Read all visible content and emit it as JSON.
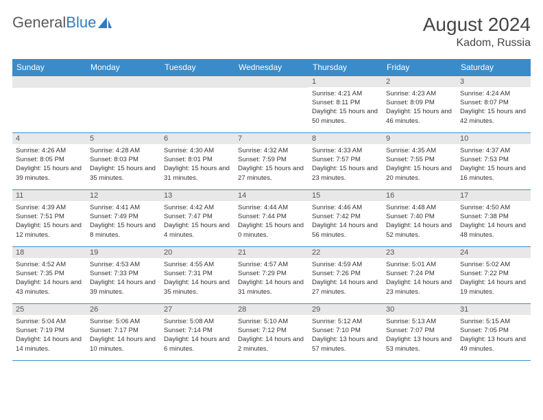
{
  "brand": {
    "part1": "General",
    "part2": "Blue"
  },
  "header": {
    "title": "August 2024",
    "location": "Kadom, Russia"
  },
  "colors": {
    "header_bg": "#3a8bc9",
    "daynum_bg": "#e8e8e8",
    "border": "#3a8bc9",
    "text": "#333333",
    "title": "#444444"
  },
  "dow": [
    "Sunday",
    "Monday",
    "Tuesday",
    "Wednesday",
    "Thursday",
    "Friday",
    "Saturday"
  ],
  "weeks": [
    [
      null,
      null,
      null,
      null,
      {
        "n": "1",
        "sr": "4:21 AM",
        "ss": "8:11 PM",
        "dl": "15 hours and 50 minutes."
      },
      {
        "n": "2",
        "sr": "4:23 AM",
        "ss": "8:09 PM",
        "dl": "15 hours and 46 minutes."
      },
      {
        "n": "3",
        "sr": "4:24 AM",
        "ss": "8:07 PM",
        "dl": "15 hours and 42 minutes."
      }
    ],
    [
      {
        "n": "4",
        "sr": "4:26 AM",
        "ss": "8:05 PM",
        "dl": "15 hours and 39 minutes."
      },
      {
        "n": "5",
        "sr": "4:28 AM",
        "ss": "8:03 PM",
        "dl": "15 hours and 35 minutes."
      },
      {
        "n": "6",
        "sr": "4:30 AM",
        "ss": "8:01 PM",
        "dl": "15 hours and 31 minutes."
      },
      {
        "n": "7",
        "sr": "4:32 AM",
        "ss": "7:59 PM",
        "dl": "15 hours and 27 minutes."
      },
      {
        "n": "8",
        "sr": "4:33 AM",
        "ss": "7:57 PM",
        "dl": "15 hours and 23 minutes."
      },
      {
        "n": "9",
        "sr": "4:35 AM",
        "ss": "7:55 PM",
        "dl": "15 hours and 20 minutes."
      },
      {
        "n": "10",
        "sr": "4:37 AM",
        "ss": "7:53 PM",
        "dl": "15 hours and 16 minutes."
      }
    ],
    [
      {
        "n": "11",
        "sr": "4:39 AM",
        "ss": "7:51 PM",
        "dl": "15 hours and 12 minutes."
      },
      {
        "n": "12",
        "sr": "4:41 AM",
        "ss": "7:49 PM",
        "dl": "15 hours and 8 minutes."
      },
      {
        "n": "13",
        "sr": "4:42 AM",
        "ss": "7:47 PM",
        "dl": "15 hours and 4 minutes."
      },
      {
        "n": "14",
        "sr": "4:44 AM",
        "ss": "7:44 PM",
        "dl": "15 hours and 0 minutes."
      },
      {
        "n": "15",
        "sr": "4:46 AM",
        "ss": "7:42 PM",
        "dl": "14 hours and 56 minutes."
      },
      {
        "n": "16",
        "sr": "4:48 AM",
        "ss": "7:40 PM",
        "dl": "14 hours and 52 minutes."
      },
      {
        "n": "17",
        "sr": "4:50 AM",
        "ss": "7:38 PM",
        "dl": "14 hours and 48 minutes."
      }
    ],
    [
      {
        "n": "18",
        "sr": "4:52 AM",
        "ss": "7:35 PM",
        "dl": "14 hours and 43 minutes."
      },
      {
        "n": "19",
        "sr": "4:53 AM",
        "ss": "7:33 PM",
        "dl": "14 hours and 39 minutes."
      },
      {
        "n": "20",
        "sr": "4:55 AM",
        "ss": "7:31 PM",
        "dl": "14 hours and 35 minutes."
      },
      {
        "n": "21",
        "sr": "4:57 AM",
        "ss": "7:29 PM",
        "dl": "14 hours and 31 minutes."
      },
      {
        "n": "22",
        "sr": "4:59 AM",
        "ss": "7:26 PM",
        "dl": "14 hours and 27 minutes."
      },
      {
        "n": "23",
        "sr": "5:01 AM",
        "ss": "7:24 PM",
        "dl": "14 hours and 23 minutes."
      },
      {
        "n": "24",
        "sr": "5:02 AM",
        "ss": "7:22 PM",
        "dl": "14 hours and 19 minutes."
      }
    ],
    [
      {
        "n": "25",
        "sr": "5:04 AM",
        "ss": "7:19 PM",
        "dl": "14 hours and 14 minutes."
      },
      {
        "n": "26",
        "sr": "5:06 AM",
        "ss": "7:17 PM",
        "dl": "14 hours and 10 minutes."
      },
      {
        "n": "27",
        "sr": "5:08 AM",
        "ss": "7:14 PM",
        "dl": "14 hours and 6 minutes."
      },
      {
        "n": "28",
        "sr": "5:10 AM",
        "ss": "7:12 PM",
        "dl": "14 hours and 2 minutes."
      },
      {
        "n": "29",
        "sr": "5:12 AM",
        "ss": "7:10 PM",
        "dl": "13 hours and 57 minutes."
      },
      {
        "n": "30",
        "sr": "5:13 AM",
        "ss": "7:07 PM",
        "dl": "13 hours and 53 minutes."
      },
      {
        "n": "31",
        "sr": "5:15 AM",
        "ss": "7:05 PM",
        "dl": "13 hours and 49 minutes."
      }
    ]
  ],
  "labels": {
    "sunrise": "Sunrise:",
    "sunset": "Sunset:",
    "daylight": "Daylight:"
  }
}
